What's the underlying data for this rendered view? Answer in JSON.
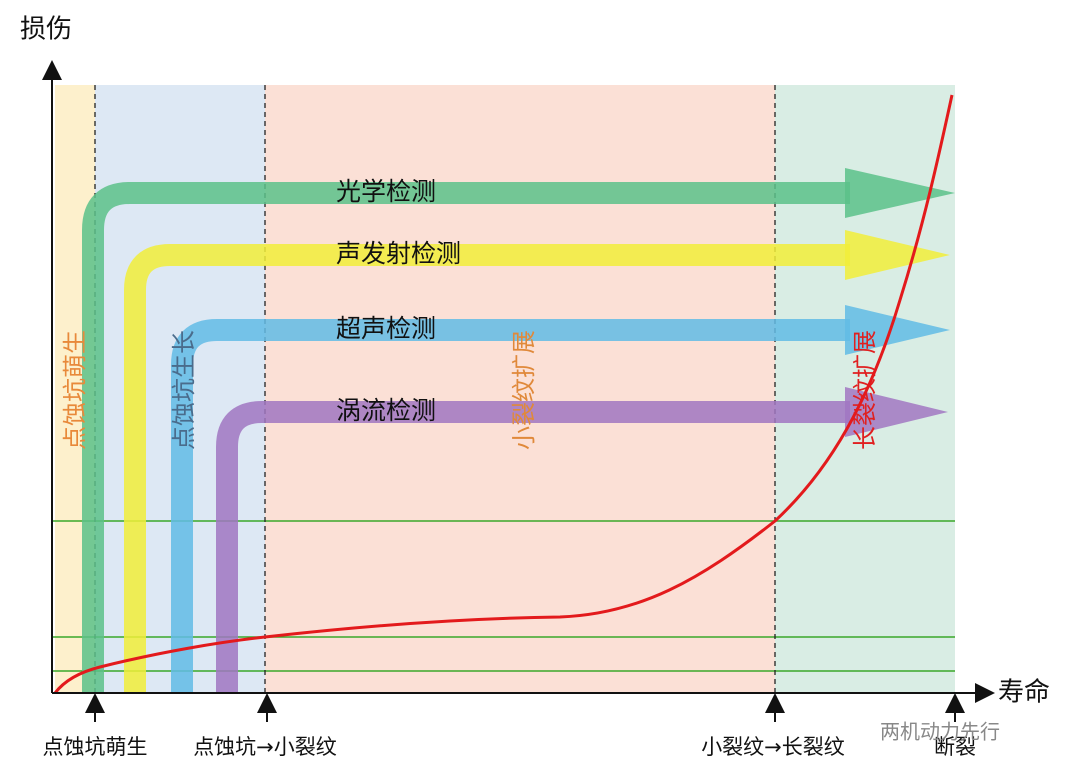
{
  "axes": {
    "y_label": "损伤",
    "x_label": "寿命"
  },
  "stages": [
    "点蚀坑萌生",
    "点蚀坑生长",
    "小裂纹扩展",
    "长裂纹扩展"
  ],
  "methods": [
    "光学检测",
    "声发射检测",
    "超声检测",
    "涡流检测"
  ],
  "milestones": [
    "点蚀坑萌生",
    "点蚀坑→小裂纹",
    "小裂纹→长裂纹",
    "断裂"
  ],
  "watermark": "两机动力先行"
}
